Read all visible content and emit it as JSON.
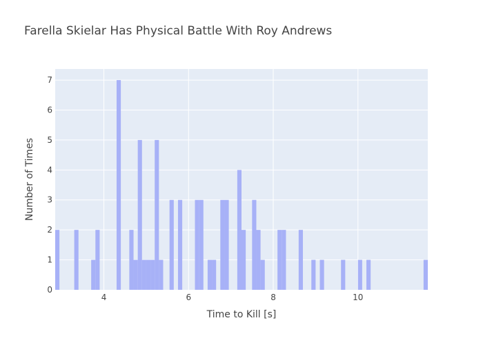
{
  "chart_data": {
    "type": "bar",
    "title": "Farella Skielar Has Physical Battle With Roy Andrews",
    "xlabel": "Time to Kill [s]",
    "ylabel": "Number of Times",
    "xlim": [
      2.85,
      11.65
    ],
    "ylim": [
      0,
      7.37
    ],
    "xticks": [
      4,
      6,
      8,
      10
    ],
    "yticks": [
      0,
      1,
      2,
      3,
      4,
      5,
      6,
      7
    ],
    "bin_width": 0.1,
    "grid": true,
    "bar_color": "#a7b1f7",
    "plot_background": "#e5ecf6",
    "bins": [
      {
        "x": 2.9,
        "count": 2
      },
      {
        "x": 3.35,
        "count": 2
      },
      {
        "x": 3.75,
        "count": 1
      },
      {
        "x": 3.85,
        "count": 2
      },
      {
        "x": 4.35,
        "count": 7
      },
      {
        "x": 4.65,
        "count": 2
      },
      {
        "x": 4.75,
        "count": 1
      },
      {
        "x": 4.85,
        "count": 5
      },
      {
        "x": 4.95,
        "count": 1
      },
      {
        "x": 5.05,
        "count": 1
      },
      {
        "x": 5.15,
        "count": 1
      },
      {
        "x": 5.25,
        "count": 5
      },
      {
        "x": 5.35,
        "count": 1
      },
      {
        "x": 5.6,
        "count": 3
      },
      {
        "x": 5.8,
        "count": 3
      },
      {
        "x": 6.2,
        "count": 3
      },
      {
        "x": 6.3,
        "count": 3
      },
      {
        "x": 6.5,
        "count": 1
      },
      {
        "x": 6.6,
        "count": 1
      },
      {
        "x": 6.8,
        "count": 3
      },
      {
        "x": 6.9,
        "count": 3
      },
      {
        "x": 7.2,
        "count": 4
      },
      {
        "x": 7.3,
        "count": 2
      },
      {
        "x": 7.55,
        "count": 3
      },
      {
        "x": 7.65,
        "count": 2
      },
      {
        "x": 7.75,
        "count": 1
      },
      {
        "x": 8.15,
        "count": 2
      },
      {
        "x": 8.25,
        "count": 2
      },
      {
        "x": 8.65,
        "count": 2
      },
      {
        "x": 8.95,
        "count": 1
      },
      {
        "x": 9.15,
        "count": 1
      },
      {
        "x": 9.65,
        "count": 1
      },
      {
        "x": 10.05,
        "count": 1
      },
      {
        "x": 10.25,
        "count": 1
      },
      {
        "x": 11.6,
        "count": 1
      }
    ]
  }
}
